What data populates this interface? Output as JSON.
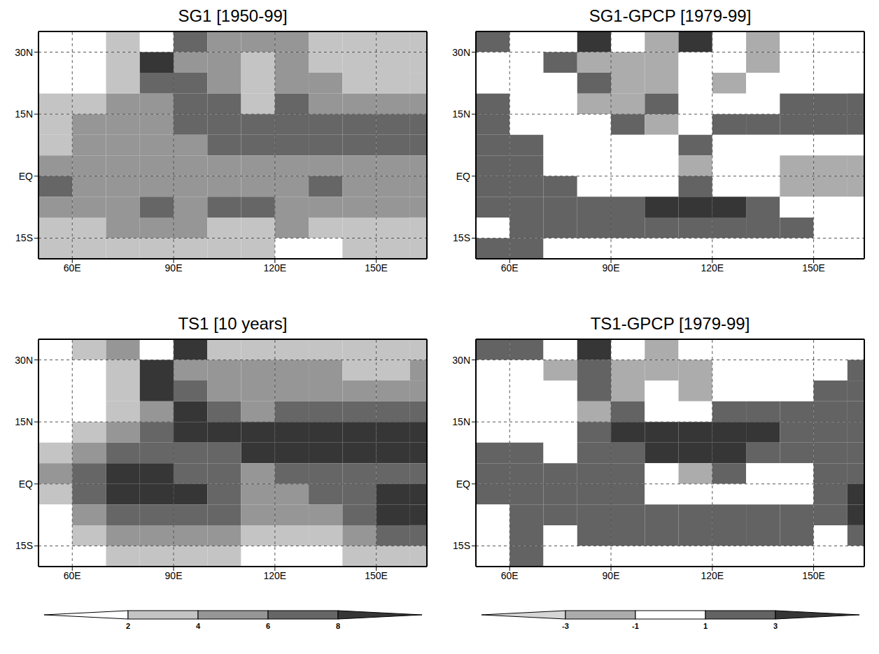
{
  "chart_data": [
    {
      "type": "heatmap",
      "title": "SG1 [1950-99]",
      "xlim": [
        50,
        165
      ],
      "ylim": [
        -20,
        35
      ],
      "xticks": [
        {
          "value": 60,
          "label": "60E"
        },
        {
          "value": 90,
          "label": "90E"
        },
        {
          "value": 120,
          "label": "120E"
        },
        {
          "value": 150,
          "label": "150E"
        }
      ],
      "yticks": [
        {
          "value": -15,
          "label": "15S"
        },
        {
          "value": 0,
          "label": "EQ"
        },
        {
          "value": 15,
          "label": "15N"
        },
        {
          "value": 30,
          "label": "30N"
        }
      ],
      "grid": true,
      "x_edges": [
        50,
        60,
        70,
        80,
        90,
        100,
        110,
        120,
        130,
        140,
        150,
        160,
        165
      ],
      "y_edges": [
        35,
        30,
        25,
        20,
        15,
        10,
        5,
        0,
        -5,
        -10,
        -15,
        -20
      ],
      "cells": [
        [
          1,
          1,
          3,
          1,
          7,
          5,
          5,
          5,
          3,
          3,
          3,
          3
        ],
        [
          1,
          1,
          3,
          9,
          5,
          5,
          3,
          5,
          3,
          3,
          3,
          3
        ],
        [
          1,
          1,
          3,
          7,
          7,
          5,
          3,
          5,
          5,
          3,
          3,
          3
        ],
        [
          3,
          3,
          5,
          5,
          7,
          7,
          3,
          7,
          5,
          5,
          5,
          5
        ],
        [
          3,
          5,
          5,
          5,
          7,
          7,
          7,
          7,
          7,
          7,
          7,
          7
        ],
        [
          3,
          5,
          5,
          5,
          5,
          7,
          7,
          7,
          7,
          7,
          7,
          7
        ],
        [
          5,
          5,
          5,
          5,
          5,
          5,
          5,
          5,
          5,
          5,
          5,
          5
        ],
        [
          7,
          5,
          5,
          5,
          5,
          5,
          5,
          5,
          7,
          5,
          5,
          5
        ],
        [
          5,
          5,
          5,
          7,
          5,
          7,
          7,
          5,
          5,
          5,
          5,
          5
        ],
        [
          3,
          3,
          5,
          5,
          5,
          3,
          3,
          5,
          3,
          3,
          3,
          3
        ],
        [
          3,
          3,
          3,
          3,
          3,
          3,
          3,
          1,
          1,
          3,
          3,
          3
        ]
      ]
    },
    {
      "type": "heatmap",
      "title": "TS1 [10 years]",
      "xlim": [
        50,
        165
      ],
      "ylim": [
        -20,
        35
      ],
      "xticks": [
        {
          "value": 60,
          "label": "60E"
        },
        {
          "value": 90,
          "label": "90E"
        },
        {
          "value": 120,
          "label": "120E"
        },
        {
          "value": 150,
          "label": "150E"
        }
      ],
      "yticks": [
        {
          "value": -15,
          "label": "15S"
        },
        {
          "value": 0,
          "label": "EQ"
        },
        {
          "value": 15,
          "label": "15N"
        },
        {
          "value": 30,
          "label": "30N"
        }
      ],
      "grid": true,
      "x_edges": [
        50,
        60,
        70,
        80,
        90,
        100,
        110,
        120,
        130,
        140,
        150,
        160,
        165
      ],
      "y_edges": [
        35,
        30,
        25,
        20,
        15,
        10,
        5,
        0,
        -5,
        -10,
        -15,
        -20
      ],
      "cells": [
        [
          1,
          3,
          5,
          1,
          9,
          3,
          3,
          3,
          3,
          3,
          3,
          3
        ],
        [
          1,
          1,
          3,
          9,
          5,
          5,
          5,
          5,
          5,
          3,
          3,
          5
        ],
        [
          1,
          1,
          3,
          9,
          7,
          5,
          5,
          5,
          5,
          5,
          5,
          5
        ],
        [
          1,
          1,
          3,
          5,
          9,
          7,
          5,
          7,
          7,
          7,
          7,
          7
        ],
        [
          1,
          3,
          5,
          7,
          9,
          9,
          9,
          9,
          9,
          9,
          9,
          9
        ],
        [
          3,
          5,
          7,
          7,
          7,
          7,
          9,
          9,
          9,
          9,
          9,
          9
        ],
        [
          5,
          7,
          9,
          9,
          7,
          7,
          5,
          7,
          7,
          7,
          7,
          7
        ],
        [
          3,
          7,
          9,
          9,
          9,
          7,
          5,
          5,
          7,
          7,
          9,
          9
        ],
        [
          1,
          5,
          7,
          7,
          7,
          7,
          5,
          5,
          5,
          7,
          9,
          9
        ],
        [
          1,
          3,
          5,
          5,
          5,
          5,
          3,
          3,
          3,
          5,
          7,
          7
        ],
        [
          1,
          1,
          3,
          3,
          3,
          3,
          1,
          1,
          1,
          3,
          3,
          3
        ]
      ],
      "colorbar": {
        "ticks": [
          2,
          4,
          6,
          8
        ]
      }
    },
    {
      "type": "heatmap",
      "title": "SG1-GPCP [1979-99]",
      "xlim": [
        50,
        165
      ],
      "ylim": [
        -20,
        35
      ],
      "xticks": [
        {
          "value": 60,
          "label": "60E"
        },
        {
          "value": 90,
          "label": "90E"
        },
        {
          "value": 120,
          "label": "120E"
        },
        {
          "value": 150,
          "label": "150E"
        }
      ],
      "yticks": [
        {
          "value": -15,
          "label": "15S"
        },
        {
          "value": 0,
          "label": "EQ"
        },
        {
          "value": 15,
          "label": "15N"
        },
        {
          "value": 30,
          "label": "30N"
        }
      ],
      "grid": true,
      "x_edges": [
        50,
        60,
        70,
        80,
        90,
        100,
        110,
        120,
        130,
        140,
        150,
        160,
        165
      ],
      "y_edges": [
        35,
        30,
        25,
        20,
        15,
        10,
        5,
        0,
        -5,
        -10,
        -15,
        -20
      ],
      "cells": [
        [
          2,
          0,
          0,
          4,
          0,
          -2,
          4,
          0,
          -2,
          0,
          0,
          0
        ],
        [
          0,
          0,
          2,
          -2,
          -2,
          -2,
          0,
          0,
          -2,
          0,
          0,
          0
        ],
        [
          0,
          0,
          0,
          2,
          -2,
          -2,
          0,
          -2,
          0,
          0,
          0,
          0
        ],
        [
          2,
          0,
          0,
          -2,
          -2,
          2,
          0,
          0,
          0,
          2,
          2,
          2
        ],
        [
          2,
          0,
          0,
          0,
          2,
          -2,
          0,
          2,
          2,
          2,
          2,
          2
        ],
        [
          2,
          2,
          0,
          0,
          0,
          0,
          2,
          0,
          0,
          0,
          0,
          0
        ],
        [
          2,
          2,
          0,
          0,
          0,
          0,
          -2,
          0,
          0,
          -2,
          -2,
          -2
        ],
        [
          2,
          2,
          2,
          0,
          0,
          0,
          2,
          0,
          0,
          -2,
          -2,
          -2
        ],
        [
          2,
          2,
          2,
          2,
          2,
          4,
          4,
          4,
          2,
          0,
          0,
          0
        ],
        [
          0,
          2,
          2,
          2,
          2,
          2,
          2,
          2,
          2,
          2,
          0,
          0
        ],
        [
          2,
          2,
          0,
          0,
          0,
          0,
          0,
          0,
          0,
          0,
          0,
          0
        ]
      ]
    },
    {
      "type": "heatmap",
      "title": "TS1-GPCP [1979-99]",
      "xlim": [
        50,
        165
      ],
      "ylim": [
        -20,
        35
      ],
      "xticks": [
        {
          "value": 60,
          "label": "60E"
        },
        {
          "value": 90,
          "label": "90E"
        },
        {
          "value": 120,
          "label": "120E"
        },
        {
          "value": 150,
          "label": "150E"
        }
      ],
      "yticks": [
        {
          "value": -15,
          "label": "15S"
        },
        {
          "value": 0,
          "label": "EQ"
        },
        {
          "value": 15,
          "label": "15N"
        },
        {
          "value": 30,
          "label": "30N"
        }
      ],
      "grid": true,
      "x_edges": [
        50,
        60,
        70,
        80,
        90,
        100,
        110,
        120,
        130,
        140,
        150,
        160,
        165
      ],
      "y_edges": [
        35,
        30,
        25,
        20,
        15,
        10,
        5,
        0,
        -5,
        -10,
        -15,
        -20
      ],
      "cells": [
        [
          2,
          2,
          0,
          4,
          0,
          -2,
          0,
          0,
          0,
          0,
          0,
          0
        ],
        [
          0,
          0,
          -2,
          2,
          -2,
          -2,
          -2,
          0,
          0,
          0,
          0,
          2
        ],
        [
          0,
          0,
          0,
          2,
          -2,
          0,
          -2,
          0,
          0,
          0,
          2,
          2
        ],
        [
          0,
          0,
          0,
          -2,
          2,
          0,
          0,
          2,
          2,
          2,
          2,
          2
        ],
        [
          0,
          0,
          0,
          2,
          4,
          4,
          4,
          4,
          4,
          2,
          2,
          2
        ],
        [
          2,
          2,
          0,
          2,
          2,
          4,
          4,
          4,
          2,
          2,
          2,
          2
        ],
        [
          2,
          2,
          2,
          2,
          2,
          0,
          -2,
          2,
          0,
          0,
          2,
          2
        ],
        [
          2,
          2,
          2,
          2,
          2,
          0,
          0,
          0,
          0,
          0,
          2,
          4
        ],
        [
          0,
          2,
          2,
          2,
          2,
          2,
          2,
          2,
          2,
          2,
          2,
          4
        ],
        [
          0,
          2,
          0,
          2,
          2,
          2,
          2,
          2,
          2,
          2,
          0,
          2
        ],
        [
          0,
          2,
          0,
          0,
          0,
          0,
          0,
          0,
          0,
          0,
          0,
          0
        ]
      ],
      "colorbar": {
        "ticks": [
          -3,
          -1,
          1,
          3
        ]
      }
    }
  ]
}
